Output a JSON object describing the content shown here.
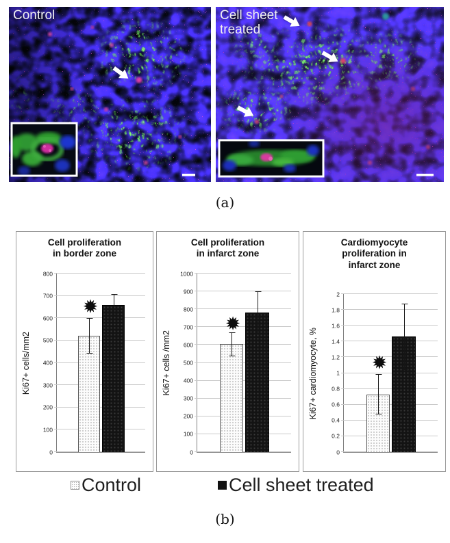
{
  "figure": {
    "panel_a": {
      "caption": "(a)",
      "micrographs": [
        {
          "label": "Control",
          "arrows": 1,
          "has_inset": true,
          "has_scale_bar": true
        },
        {
          "label": "Cell sheet treated",
          "arrows": 3,
          "has_inset": true,
          "has_scale_bar": true
        }
      ]
    },
    "panel_b": {
      "caption": "(b)",
      "legend": [
        {
          "label": "Control",
          "swatch": "dotted-white"
        },
        {
          "label": "Cell sheet treated",
          "swatch": "solid-black"
        }
      ]
    }
  },
  "icons": {
    "arrow": "white-block-arrow",
    "significance": "✹"
  },
  "colors": {
    "fluor_blue": "#2233cc",
    "fluor_green": "#33a233",
    "fluor_magenta": "#cc33aa",
    "bar_control_bg": "#fcfcfc",
    "bar_treated_bg": "#131313",
    "gridline": "#c9c9c9",
    "chart_border": "#9a9a9a"
  },
  "chart_data": [
    {
      "type": "bar",
      "title": "Cell proliferation\nin border zone",
      "xlabel": "",
      "ylabel": "Ki67+ cells/mm2",
      "ylim": [
        0,
        800
      ],
      "grid": true,
      "legend_position": "bottom",
      "yticks": [
        800,
        700,
        600,
        500,
        400,
        300,
        200,
        100,
        0
      ],
      "ytick_labels": [
        "800",
        "700",
        "600",
        "500",
        "400",
        "300",
        "200",
        "100",
        "0"
      ],
      "categories": [
        "Control",
        "Cell sheet treated"
      ],
      "series": [
        {
          "name": "Control",
          "value": 520,
          "err_low": 440,
          "err_high": 600
        },
        {
          "name": "Cell sheet treated",
          "value": 660,
          "err_low": 613,
          "err_high": 707
        }
      ],
      "significance": {
        "symbol": "✹",
        "x_pct": 38,
        "y_value": 650
      }
    },
    {
      "type": "bar",
      "title": "Cell proliferation\nin infarct zone",
      "xlabel": "",
      "ylabel": "Ki67+ cells /mm2",
      "ylim": [
        0,
        1000
      ],
      "grid": true,
      "legend_position": "bottom",
      "yticks": [
        1000,
        900,
        800,
        700,
        600,
        500,
        400,
        300,
        200,
        100,
        0
      ],
      "ytick_labels": [
        "1000",
        "900",
        "800",
        "700",
        "600",
        "500",
        "400",
        "300",
        "200",
        "100",
        "0"
      ],
      "categories": [
        "Control",
        "Cell sheet treated"
      ],
      "series": [
        {
          "name": "Control",
          "value": 605,
          "err_low": 535,
          "err_high": 670
        },
        {
          "name": "Cell sheet treated",
          "value": 780,
          "err_low": 660,
          "err_high": 900
        }
      ],
      "significance": {
        "symbol": "✹",
        "x_pct": 38,
        "y_value": 715
      }
    },
    {
      "type": "bar",
      "title": "Cardiomyocyte\nproliferation in\ninfarct zone",
      "xlabel": "",
      "ylabel": "Ki67+ cardiomyocyte, %",
      "ylim": [
        0,
        2
      ],
      "grid": true,
      "legend_position": "bottom",
      "yticks": [
        2,
        1.8,
        1.6,
        1.4,
        1.2,
        1,
        0.8,
        0.6,
        0.4,
        0.2,
        0
      ],
      "ytick_labels": [
        "2",
        "1.8",
        "1.6",
        "1.4",
        "1.2",
        "1",
        "0.8",
        "0.6",
        "0.4",
        "0.2",
        "0"
      ],
      "categories": [
        "Control",
        "Cell sheet treated"
      ],
      "series": [
        {
          "name": "Control",
          "value": 0.73,
          "err_low": 0.48,
          "err_high": 0.99
        },
        {
          "name": "Cell sheet treated",
          "value": 1.46,
          "err_low": 1.04,
          "err_high": 1.88
        }
      ],
      "significance": {
        "symbol": "✹",
        "x_pct": 38,
        "y_value": 1.13
      }
    }
  ]
}
